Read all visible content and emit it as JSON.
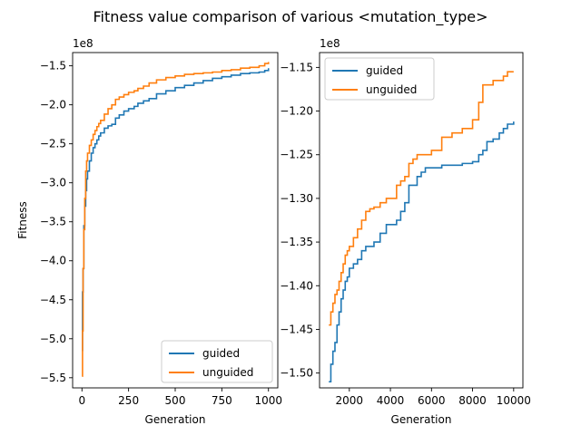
{
  "figure": {
    "suptitle": "Fitness value comparison of various <mutation_type>"
  },
  "colors": {
    "guided": "#1f77b4",
    "unguided": "#ff7f0e"
  },
  "chart_data": [
    {
      "type": "line",
      "title": "",
      "xlabel": "Generation",
      "ylabel": "Fitness",
      "offset_label": "1e8",
      "xlim": [
        -50,
        1050
      ],
      "ylim": [
        -5.63,
        -1.33
      ],
      "xticks": [
        0,
        250,
        500,
        750,
        1000
      ],
      "xtick_labels": [
        "0",
        "250",
        "500",
        "750",
        "1000"
      ],
      "yticks": [
        -5.5,
        -5.0,
        -4.5,
        -4.0,
        -3.5,
        -3.0,
        -2.5,
        -2.0,
        -1.5
      ],
      "ytick_labels": [
        "−5.5",
        "−5.0",
        "−4.5",
        "−4.0",
        "−3.5",
        "−3.0",
        "−2.5",
        "−2.0",
        "−1.5"
      ],
      "legend": {
        "location": "lower-right",
        "entries": [
          "guided",
          "unguided"
        ]
      },
      "series": [
        {
          "name": "guided",
          "x": [
            0,
            3,
            6,
            10,
            15,
            20,
            25,
            30,
            40,
            50,
            60,
            70,
            80,
            90,
            100,
            120,
            140,
            160,
            180,
            200,
            225,
            250,
            280,
            300,
            330,
            360,
            400,
            450,
            500,
            550,
            600,
            650,
            700,
            750,
            800,
            850,
            900,
            950,
            980,
            1000
          ],
          "y": [
            -5.15,
            -4.4,
            -4.1,
            -3.55,
            -3.3,
            -3.1,
            -2.95,
            -2.85,
            -2.72,
            -2.62,
            -2.55,
            -2.5,
            -2.45,
            -2.4,
            -2.36,
            -2.3,
            -2.27,
            -2.25,
            -2.17,
            -2.13,
            -2.08,
            -2.05,
            -2.02,
            -1.98,
            -1.95,
            -1.92,
            -1.86,
            -1.82,
            -1.78,
            -1.75,
            -1.72,
            -1.69,
            -1.66,
            -1.64,
            -1.62,
            -1.6,
            -1.59,
            -1.58,
            -1.56,
            -1.53
          ]
        },
        {
          "name": "unguided",
          "x": [
            0,
            3,
            6,
            10,
            15,
            20,
            25,
            30,
            40,
            50,
            60,
            70,
            80,
            90,
            100,
            120,
            140,
            160,
            180,
            200,
            225,
            250,
            280,
            300,
            330,
            360,
            400,
            450,
            500,
            550,
            600,
            650,
            700,
            750,
            800,
            850,
            900,
            950,
            980,
            1000
          ],
          "y": [
            -5.48,
            -4.9,
            -4.1,
            -3.6,
            -3.2,
            -2.85,
            -2.72,
            -2.62,
            -2.52,
            -2.45,
            -2.38,
            -2.33,
            -2.28,
            -2.24,
            -2.2,
            -2.12,
            -2.05,
            -2.0,
            -1.93,
            -1.9,
            -1.87,
            -1.84,
            -1.82,
            -1.79,
            -1.76,
            -1.72,
            -1.68,
            -1.65,
            -1.63,
            -1.61,
            -1.6,
            -1.59,
            -1.58,
            -1.56,
            -1.55,
            -1.53,
            -1.52,
            -1.5,
            -1.47,
            -1.45
          ]
        }
      ]
    },
    {
      "type": "line",
      "title": "",
      "xlabel": "Generation",
      "ylabel": "",
      "offset_label": "1e8",
      "xlim": [
        550,
        10450
      ],
      "ylim": [
        -1.517,
        -1.133
      ],
      "xticks": [
        2000,
        4000,
        6000,
        8000,
        10000
      ],
      "xtick_labels": [
        "2000",
        "4000",
        "6000",
        "8000",
        "10000"
      ],
      "yticks": [
        -1.5,
        -1.45,
        -1.4,
        -1.35,
        -1.3,
        -1.25,
        -1.2,
        -1.15
      ],
      "ytick_labels": [
        "−1.50",
        "−1.45",
        "−1.40",
        "−1.35",
        "−1.30",
        "−1.25",
        "−1.20",
        "−1.15"
      ],
      "legend": {
        "location": "upper-left",
        "entries": [
          "guided",
          "unguided"
        ]
      },
      "series": [
        {
          "name": "guided",
          "x": [
            1000,
            1100,
            1200,
            1300,
            1400,
            1500,
            1600,
            1700,
            1800,
            1900,
            2000,
            2200,
            2400,
            2600,
            2800,
            3000,
            3200,
            3500,
            3800,
            4000,
            4300,
            4500,
            4700,
            4900,
            5100,
            5300,
            5500,
            5700,
            6000,
            6500,
            7000,
            7500,
            8000,
            8300,
            8500,
            8700,
            9000,
            9300,
            9500,
            9700,
            10000
          ],
          "y": [
            -1.51,
            -1.49,
            -1.475,
            -1.465,
            -1.445,
            -1.43,
            -1.415,
            -1.405,
            -1.395,
            -1.39,
            -1.38,
            -1.375,
            -1.37,
            -1.36,
            -1.355,
            -1.355,
            -1.35,
            -1.34,
            -1.33,
            -1.33,
            -1.325,
            -1.315,
            -1.305,
            -1.285,
            -1.285,
            -1.275,
            -1.27,
            -1.265,
            -1.265,
            -1.262,
            -1.262,
            -1.26,
            -1.258,
            -1.25,
            -1.245,
            -1.235,
            -1.232,
            -1.225,
            -1.22,
            -1.215,
            -1.212
          ]
        },
        {
          "name": "unguided",
          "x": [
            1000,
            1100,
            1200,
            1300,
            1400,
            1500,
            1600,
            1700,
            1800,
            1900,
            2000,
            2200,
            2400,
            2600,
            2800,
            3000,
            3200,
            3500,
            3800,
            4000,
            4300,
            4500,
            4700,
            4900,
            5100,
            5300,
            5500,
            5700,
            6000,
            6500,
            7000,
            7500,
            8000,
            8300,
            8500,
            8700,
            9000,
            9300,
            9500,
            9700,
            10000
          ],
          "y": [
            -1.445,
            -1.43,
            -1.42,
            -1.41,
            -1.405,
            -1.395,
            -1.385,
            -1.375,
            -1.365,
            -1.36,
            -1.355,
            -1.345,
            -1.335,
            -1.325,
            -1.315,
            -1.312,
            -1.31,
            -1.305,
            -1.3,
            -1.3,
            -1.285,
            -1.28,
            -1.275,
            -1.26,
            -1.255,
            -1.25,
            -1.25,
            -1.25,
            -1.245,
            -1.23,
            -1.225,
            -1.22,
            -1.21,
            -1.19,
            -1.17,
            -1.17,
            -1.165,
            -1.165,
            -1.16,
            -1.155,
            -1.155
          ]
        }
      ]
    }
  ]
}
